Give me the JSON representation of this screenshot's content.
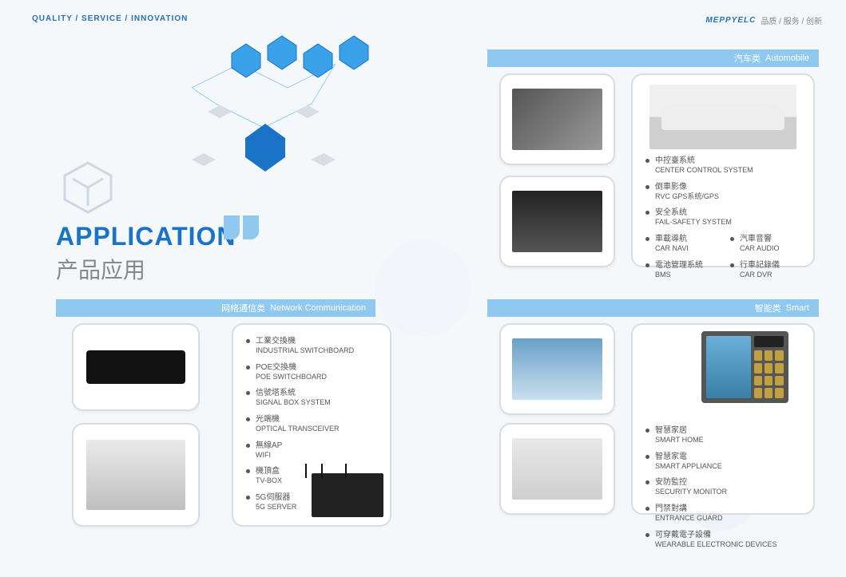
{
  "colors": {
    "accent": "#1b73c8",
    "bar": "#8fc9ef",
    "border": "#d9dde0",
    "text": "#555555",
    "muted": "#888888"
  },
  "header": {
    "left": "QUALITY / SERVICE / INNOVATION",
    "brand": "MEPPYELC",
    "tag_cn": "品质 / 服务 / 创新"
  },
  "title": {
    "en": "APPLICATION",
    "cn": "产品应用"
  },
  "sections": {
    "network": {
      "cn": "网络通信类",
      "en": "Network Communication"
    },
    "auto": {
      "cn": "汽车类",
      "en": "Automobile"
    },
    "smart": {
      "cn": "智能类",
      "en": "Smart"
    }
  },
  "network_items": [
    {
      "cn": "工業交換機",
      "en": "INDUSTRIAL SWITCHBOARD"
    },
    {
      "cn": "POE交換機",
      "en": "POE SWITCHBOARD"
    },
    {
      "cn": "信號塔系統",
      "en": "SIGNAL BOX SYSTEM"
    },
    {
      "cn": "光端機",
      "en": "OPTICAL TRANSCEIVER"
    },
    {
      "cn": "無線AP",
      "en": "WIFI"
    },
    {
      "cn": "機頂盒",
      "en": "TV-BOX"
    },
    {
      "cn": "5G伺服器",
      "en": "5G SERVER"
    }
  ],
  "auto_items_a": [
    {
      "cn": "中控臺系統",
      "en": "CENTER CONTROL SYSTEM"
    },
    {
      "cn": "倒車影像",
      "en": "RVC GPS系统/GPS"
    },
    {
      "cn": "安全系统",
      "en": "FAIL-SAFETY SYSTEM"
    }
  ],
  "auto_items_b1": [
    {
      "cn": "車載導航",
      "en": "CAR NAVI"
    },
    {
      "cn": "電池管理系統",
      "en": "BMS"
    }
  ],
  "auto_items_b2": [
    {
      "cn": "汽車音響",
      "en": "CAR AUDIO"
    },
    {
      "cn": "行車記錄儀",
      "en": "CAR DVR"
    }
  ],
  "smart_items": [
    {
      "cn": "智慧家居",
      "en": "SMART HOME"
    },
    {
      "cn": "智慧家電",
      "en": "SMART APPLIANCE"
    },
    {
      "cn": "安防監控",
      "en": "SECURITY MONITOR"
    },
    {
      "cn": "門禁對講",
      "en": "ENTRANCE GUARD"
    },
    {
      "cn": "可穿戴電子設備",
      "en": "WEARABLE ELECTRONIC DEVICES"
    }
  ]
}
